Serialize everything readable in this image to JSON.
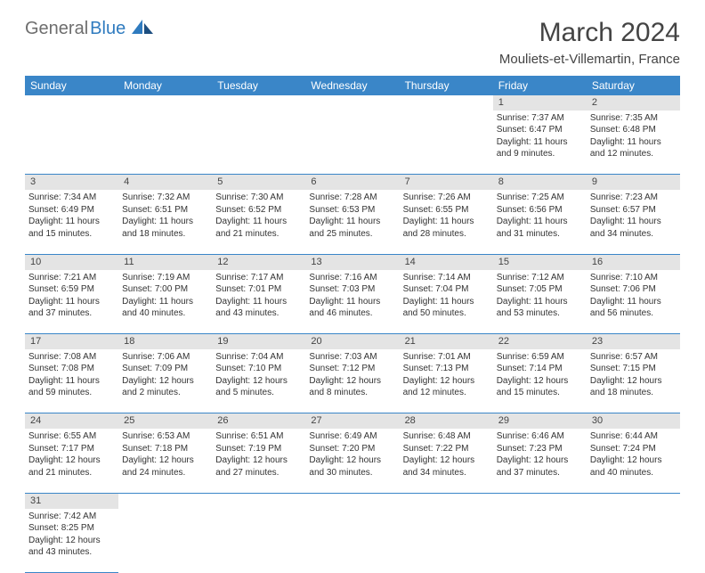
{
  "logo": {
    "gray": "General",
    "blue": "Blue"
  },
  "title": "March 2024",
  "location": "Mouliets-et-Villemartin, France",
  "header_bg": "#3a86c8",
  "daynum_bg": "#e4e4e4",
  "weekdays": [
    "Sunday",
    "Monday",
    "Tuesday",
    "Wednesday",
    "Thursday",
    "Friday",
    "Saturday"
  ],
  "weeks": [
    {
      "nums": [
        "",
        "",
        "",
        "",
        "",
        "1",
        "2"
      ],
      "cells": [
        null,
        null,
        null,
        null,
        null,
        {
          "sunrise": "Sunrise: 7:37 AM",
          "sunset": "Sunset: 6:47 PM",
          "daylight1": "Daylight: 11 hours",
          "daylight2": "and 9 minutes."
        },
        {
          "sunrise": "Sunrise: 7:35 AM",
          "sunset": "Sunset: 6:48 PM",
          "daylight1": "Daylight: 11 hours",
          "daylight2": "and 12 minutes."
        }
      ]
    },
    {
      "nums": [
        "3",
        "4",
        "5",
        "6",
        "7",
        "8",
        "9"
      ],
      "cells": [
        {
          "sunrise": "Sunrise: 7:34 AM",
          "sunset": "Sunset: 6:49 PM",
          "daylight1": "Daylight: 11 hours",
          "daylight2": "and 15 minutes."
        },
        {
          "sunrise": "Sunrise: 7:32 AM",
          "sunset": "Sunset: 6:51 PM",
          "daylight1": "Daylight: 11 hours",
          "daylight2": "and 18 minutes."
        },
        {
          "sunrise": "Sunrise: 7:30 AM",
          "sunset": "Sunset: 6:52 PM",
          "daylight1": "Daylight: 11 hours",
          "daylight2": "and 21 minutes."
        },
        {
          "sunrise": "Sunrise: 7:28 AM",
          "sunset": "Sunset: 6:53 PM",
          "daylight1": "Daylight: 11 hours",
          "daylight2": "and 25 minutes."
        },
        {
          "sunrise": "Sunrise: 7:26 AM",
          "sunset": "Sunset: 6:55 PM",
          "daylight1": "Daylight: 11 hours",
          "daylight2": "and 28 minutes."
        },
        {
          "sunrise": "Sunrise: 7:25 AM",
          "sunset": "Sunset: 6:56 PM",
          "daylight1": "Daylight: 11 hours",
          "daylight2": "and 31 minutes."
        },
        {
          "sunrise": "Sunrise: 7:23 AM",
          "sunset": "Sunset: 6:57 PM",
          "daylight1": "Daylight: 11 hours",
          "daylight2": "and 34 minutes."
        }
      ]
    },
    {
      "nums": [
        "10",
        "11",
        "12",
        "13",
        "14",
        "15",
        "16"
      ],
      "cells": [
        {
          "sunrise": "Sunrise: 7:21 AM",
          "sunset": "Sunset: 6:59 PM",
          "daylight1": "Daylight: 11 hours",
          "daylight2": "and 37 minutes."
        },
        {
          "sunrise": "Sunrise: 7:19 AM",
          "sunset": "Sunset: 7:00 PM",
          "daylight1": "Daylight: 11 hours",
          "daylight2": "and 40 minutes."
        },
        {
          "sunrise": "Sunrise: 7:17 AM",
          "sunset": "Sunset: 7:01 PM",
          "daylight1": "Daylight: 11 hours",
          "daylight2": "and 43 minutes."
        },
        {
          "sunrise": "Sunrise: 7:16 AM",
          "sunset": "Sunset: 7:03 PM",
          "daylight1": "Daylight: 11 hours",
          "daylight2": "and 46 minutes."
        },
        {
          "sunrise": "Sunrise: 7:14 AM",
          "sunset": "Sunset: 7:04 PM",
          "daylight1": "Daylight: 11 hours",
          "daylight2": "and 50 minutes."
        },
        {
          "sunrise": "Sunrise: 7:12 AM",
          "sunset": "Sunset: 7:05 PM",
          "daylight1": "Daylight: 11 hours",
          "daylight2": "and 53 minutes."
        },
        {
          "sunrise": "Sunrise: 7:10 AM",
          "sunset": "Sunset: 7:06 PM",
          "daylight1": "Daylight: 11 hours",
          "daylight2": "and 56 minutes."
        }
      ]
    },
    {
      "nums": [
        "17",
        "18",
        "19",
        "20",
        "21",
        "22",
        "23"
      ],
      "cells": [
        {
          "sunrise": "Sunrise: 7:08 AM",
          "sunset": "Sunset: 7:08 PM",
          "daylight1": "Daylight: 11 hours",
          "daylight2": "and 59 minutes."
        },
        {
          "sunrise": "Sunrise: 7:06 AM",
          "sunset": "Sunset: 7:09 PM",
          "daylight1": "Daylight: 12 hours",
          "daylight2": "and 2 minutes."
        },
        {
          "sunrise": "Sunrise: 7:04 AM",
          "sunset": "Sunset: 7:10 PM",
          "daylight1": "Daylight: 12 hours",
          "daylight2": "and 5 minutes."
        },
        {
          "sunrise": "Sunrise: 7:03 AM",
          "sunset": "Sunset: 7:12 PM",
          "daylight1": "Daylight: 12 hours",
          "daylight2": "and 8 minutes."
        },
        {
          "sunrise": "Sunrise: 7:01 AM",
          "sunset": "Sunset: 7:13 PM",
          "daylight1": "Daylight: 12 hours",
          "daylight2": "and 12 minutes."
        },
        {
          "sunrise": "Sunrise: 6:59 AM",
          "sunset": "Sunset: 7:14 PM",
          "daylight1": "Daylight: 12 hours",
          "daylight2": "and 15 minutes."
        },
        {
          "sunrise": "Sunrise: 6:57 AM",
          "sunset": "Sunset: 7:15 PM",
          "daylight1": "Daylight: 12 hours",
          "daylight2": "and 18 minutes."
        }
      ]
    },
    {
      "nums": [
        "24",
        "25",
        "26",
        "27",
        "28",
        "29",
        "30"
      ],
      "cells": [
        {
          "sunrise": "Sunrise: 6:55 AM",
          "sunset": "Sunset: 7:17 PM",
          "daylight1": "Daylight: 12 hours",
          "daylight2": "and 21 minutes."
        },
        {
          "sunrise": "Sunrise: 6:53 AM",
          "sunset": "Sunset: 7:18 PM",
          "daylight1": "Daylight: 12 hours",
          "daylight2": "and 24 minutes."
        },
        {
          "sunrise": "Sunrise: 6:51 AM",
          "sunset": "Sunset: 7:19 PM",
          "daylight1": "Daylight: 12 hours",
          "daylight2": "and 27 minutes."
        },
        {
          "sunrise": "Sunrise: 6:49 AM",
          "sunset": "Sunset: 7:20 PM",
          "daylight1": "Daylight: 12 hours",
          "daylight2": "and 30 minutes."
        },
        {
          "sunrise": "Sunrise: 6:48 AM",
          "sunset": "Sunset: 7:22 PM",
          "daylight1": "Daylight: 12 hours",
          "daylight2": "and 34 minutes."
        },
        {
          "sunrise": "Sunrise: 6:46 AM",
          "sunset": "Sunset: 7:23 PM",
          "daylight1": "Daylight: 12 hours",
          "daylight2": "and 37 minutes."
        },
        {
          "sunrise": "Sunrise: 6:44 AM",
          "sunset": "Sunset: 7:24 PM",
          "daylight1": "Daylight: 12 hours",
          "daylight2": "and 40 minutes."
        }
      ]
    },
    {
      "nums": [
        "31",
        "",
        "",
        "",
        "",
        "",
        ""
      ],
      "cells": [
        {
          "sunrise": "Sunrise: 7:42 AM",
          "sunset": "Sunset: 8:25 PM",
          "daylight1": "Daylight: 12 hours",
          "daylight2": "and 43 minutes."
        },
        null,
        null,
        null,
        null,
        null,
        null
      ]
    }
  ]
}
